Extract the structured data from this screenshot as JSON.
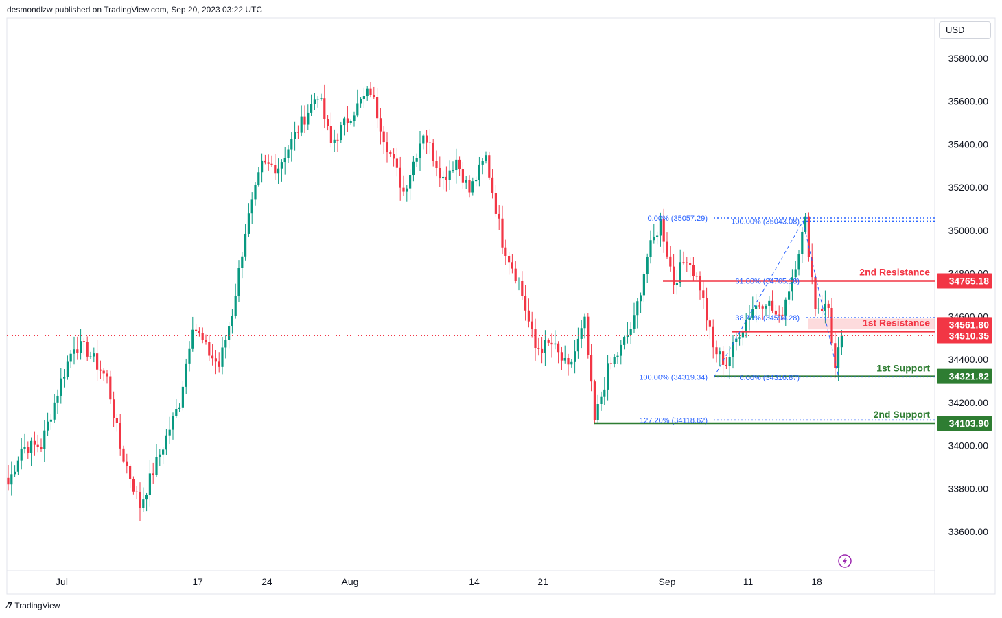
{
  "header": {
    "publisher": "desmondlzw published on TradingView.com, Sep 20, 2023 03:22 UTC"
  },
  "footer": {
    "brand": "TradingView"
  },
  "currency": "USD",
  "colors": {
    "up": "#089981",
    "down": "#f23645",
    "resistance": "#f23645",
    "support": "#2e7d32",
    "fib": "#2962ff",
    "fib_orange": "#f7a21b"
  },
  "chart_data": {
    "type": "candlestick",
    "title": "",
    "ylim": [
      33450,
      35950
    ],
    "y_ticks": [
      "35800.00",
      "35600.00",
      "35400.00",
      "35200.00",
      "35000.00",
      "34800.00",
      "34600.00",
      "34400.00",
      "34200.00",
      "34000.00",
      "33800.00",
      "33600.00"
    ],
    "x_ticks": [
      "Jul",
      "17",
      "24",
      "Aug",
      "14",
      "21",
      "Sep",
      "11",
      "18"
    ],
    "current_price": "34510.35",
    "levels": [
      {
        "name": "2nd Resistance",
        "value": "34765.18",
        "kind": "resistance"
      },
      {
        "name": "1st Resistance",
        "value": "34561.80",
        "kind": "resistance"
      },
      {
        "name": "1st Support",
        "value": "34321.82",
        "kind": "support"
      },
      {
        "name": "2nd Support",
        "value": "34103.90",
        "kind": "support"
      }
    ],
    "fib_labels": [
      {
        "text": "0.00% (35057.29)"
      },
      {
        "text": "100.00% (35043.08)"
      },
      {
        "text": "61.80% (34765.18)"
      },
      {
        "text": "38.20% (34594.28)"
      },
      {
        "text": "100.00% (34319.34)"
      },
      {
        "text": "0.00% (34316.87)"
      },
      {
        "text": "127.20% (34118.62)"
      }
    ],
    "anchors": [
      {
        "i": 0,
        "v": 33820
      },
      {
        "i": 4,
        "v": 33990
      },
      {
        "i": 10,
        "v": 34000
      },
      {
        "i": 16,
        "v": 34300
      },
      {
        "i": 20,
        "v": 34470
      },
      {
        "i": 24,
        "v": 34440
      },
      {
        "i": 30,
        "v": 34310
      },
      {
        "i": 34,
        "v": 33990
      },
      {
        "i": 40,
        "v": 33720
      },
      {
        "i": 46,
        "v": 33960
      },
      {
        "i": 52,
        "v": 34200
      },
      {
        "i": 56,
        "v": 34570
      },
      {
        "i": 60,
        "v": 34450
      },
      {
        "i": 64,
        "v": 34370
      },
      {
        "i": 68,
        "v": 34620
      },
      {
        "i": 72,
        "v": 35000
      },
      {
        "i": 77,
        "v": 35300
      },
      {
        "i": 82,
        "v": 35300
      },
      {
        "i": 88,
        "v": 35470
      },
      {
        "i": 94,
        "v": 35640
      },
      {
        "i": 98,
        "v": 35400
      },
      {
        "i": 104,
        "v": 35540
      },
      {
        "i": 110,
        "v": 35650
      },
      {
        "i": 114,
        "v": 35440
      },
      {
        "i": 120,
        "v": 35180
      },
      {
        "i": 126,
        "v": 35460
      },
      {
        "i": 132,
        "v": 35240
      },
      {
        "i": 136,
        "v": 35330
      },
      {
        "i": 140,
        "v": 35180
      },
      {
        "i": 145,
        "v": 35340
      },
      {
        "i": 150,
        "v": 34950
      },
      {
        "i": 155,
        "v": 34760
      },
      {
        "i": 160,
        "v": 34450
      },
      {
        "i": 165,
        "v": 34470
      },
      {
        "i": 170,
        "v": 34350
      },
      {
        "i": 175,
        "v": 34570
      },
      {
        "i": 178,
        "v": 34110
      },
      {
        "i": 182,
        "v": 34350
      },
      {
        "i": 186,
        "v": 34450
      },
      {
        "i": 190,
        "v": 34580
      },
      {
        "i": 194,
        "v": 34880
      },
      {
        "i": 198,
        "v": 35040
      },
      {
        "i": 202,
        "v": 34760
      },
      {
        "i": 206,
        "v": 34880
      },
      {
        "i": 210,
        "v": 34740
      },
      {
        "i": 214,
        "v": 34450
      },
      {
        "i": 218,
        "v": 34380
      },
      {
        "i": 222,
        "v": 34530
      },
      {
        "i": 226,
        "v": 34640
      },
      {
        "i": 230,
        "v": 34680
      },
      {
        "i": 234,
        "v": 34580
      },
      {
        "i": 238,
        "v": 34790
      },
      {
        "i": 242,
        "v": 35040
      },
      {
        "i": 245,
        "v": 34650
      },
      {
        "i": 249,
        "v": 34640
      },
      {
        "i": 251,
        "v": 34350
      },
      {
        "i": 253,
        "v": 34510
      }
    ]
  }
}
